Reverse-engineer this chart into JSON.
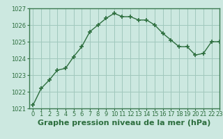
{
  "x": [
    0,
    1,
    2,
    3,
    4,
    5,
    6,
    7,
    8,
    9,
    10,
    11,
    12,
    13,
    14,
    15,
    16,
    17,
    18,
    19,
    20,
    21,
    22,
    23
  ],
  "y": [
    1021.2,
    1022.2,
    1022.7,
    1023.3,
    1023.4,
    1024.1,
    1024.7,
    1025.6,
    1026.0,
    1026.4,
    1026.7,
    1026.5,
    1026.5,
    1026.3,
    1026.3,
    1026.0,
    1025.5,
    1025.1,
    1024.7,
    1024.7,
    1024.2,
    1024.3,
    1025.0,
    1025.0
  ],
  "bg_color": "#cce8e0",
  "grid_color": "#a0c8bc",
  "line_color": "#2d6e3e",
  "marker_color": "#2d6e3e",
  "border_color": "#3a7a50",
  "xlabel": "Graphe pression niveau de la mer (hPa)",
  "xlabel_color": "#2d6e3e",
  "ylim": [
    1021.0,
    1027.0
  ],
  "xlim": [
    -0.5,
    23
  ],
  "yticks": [
    1021,
    1022,
    1023,
    1024,
    1025,
    1026,
    1027
  ],
  "xticks": [
    0,
    1,
    2,
    3,
    4,
    5,
    6,
    7,
    8,
    9,
    10,
    11,
    12,
    13,
    14,
    15,
    16,
    17,
    18,
    19,
    20,
    21,
    22,
    23
  ],
  "tick_fontsize": 6.0,
  "xlabel_fontsize": 8.0,
  "line_width": 1.0,
  "marker_size": 4.0
}
